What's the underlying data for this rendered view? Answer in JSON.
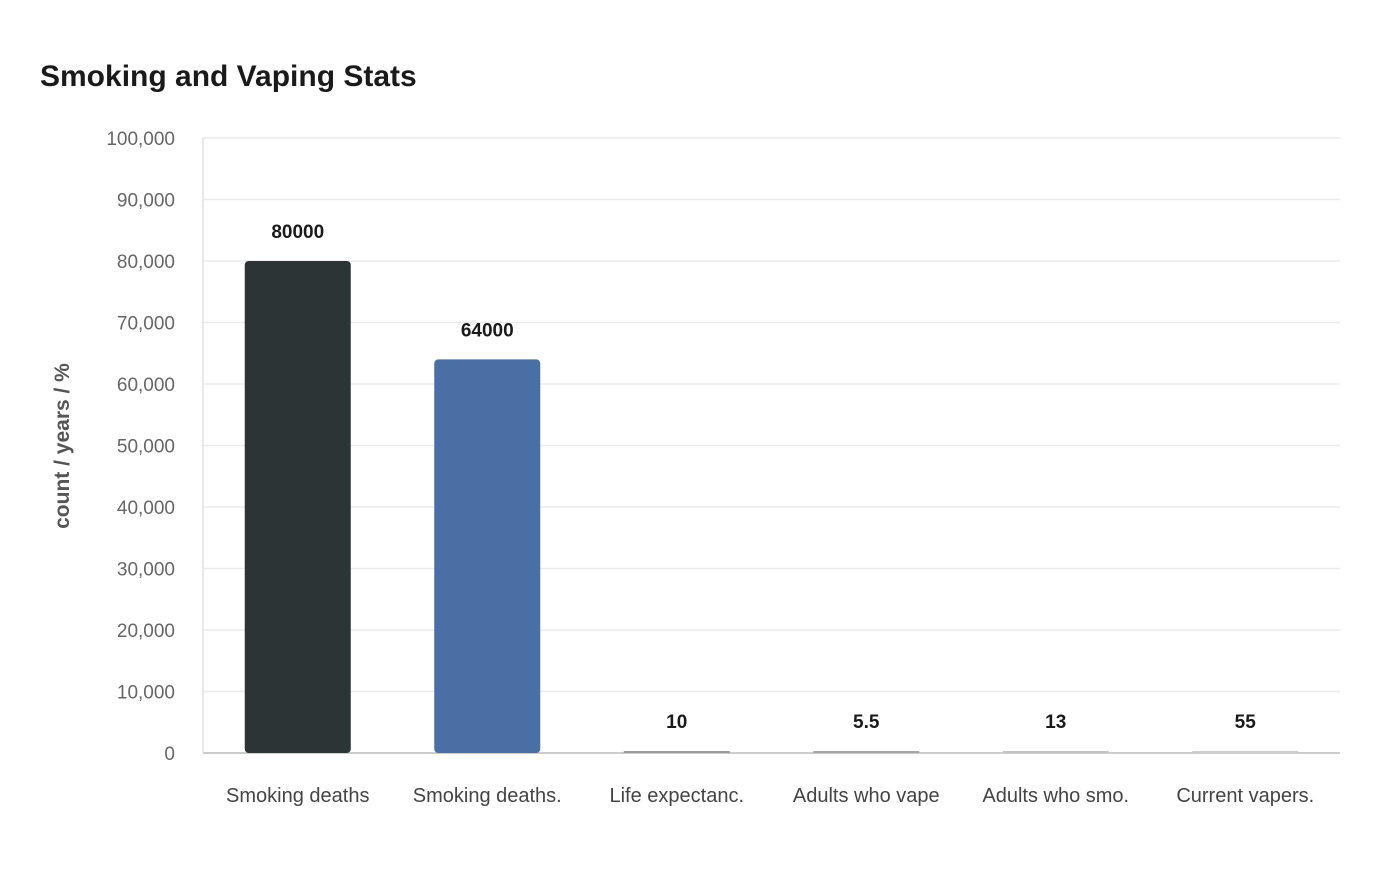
{
  "chart_data": {
    "type": "bar",
    "title": "Smoking and Vaping Stats",
    "xlabel": "",
    "ylabel": "count / years / %",
    "categories": [
      "Smoking deaths",
      "Smoking deaths.",
      "Life expectanc.",
      "Adults who vape",
      "Adults who smo.",
      "Current vapers."
    ],
    "values": [
      80000,
      64000,
      10,
      5.5,
      13,
      55
    ],
    "data_labels": [
      "80000",
      "64000",
      "10",
      "5.5",
      "13",
      "55"
    ],
    "colors": [
      "#2d3436",
      "#4a6fa5",
      "#999999",
      "#a6a6a6",
      "#c4c4c4",
      "#cfcfcf"
    ],
    "ylim": [
      0,
      100000
    ],
    "yticks": [
      "0",
      "10,000",
      "20,000",
      "30,000",
      "40,000",
      "50,000",
      "60,000",
      "70,000",
      "80,000",
      "90,000",
      "100,000"
    ],
    "grid": true,
    "legend": "none"
  }
}
